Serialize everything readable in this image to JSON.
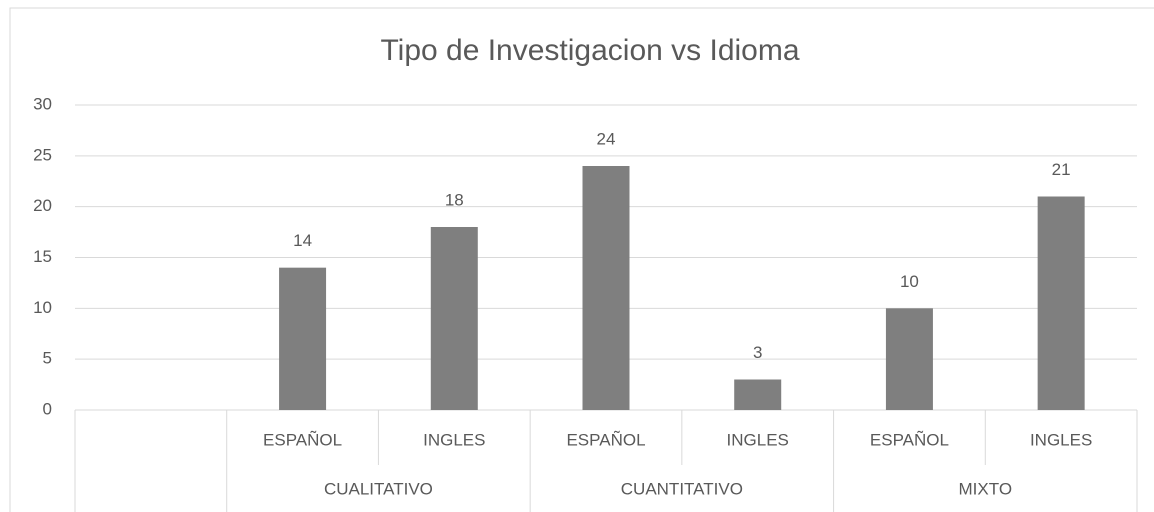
{
  "chart_data": {
    "type": "bar",
    "title": "Tipo de Investigacion vs Idioma",
    "groups": [
      {
        "name": null,
        "categories": [
          null
        ],
        "values": [
          null
        ]
      },
      {
        "name": "CUALITATIVO",
        "categories": [
          "ESPAÑOL",
          "INGLES"
        ],
        "values": [
          14,
          18
        ]
      },
      {
        "name": "CUANTITATIVO",
        "categories": [
          "ESPAÑOL",
          "INGLES"
        ],
        "values": [
          24,
          3
        ]
      },
      {
        "name": "MIXTO",
        "categories": [
          "ESPAÑOL",
          "INGLES"
        ],
        "values": [
          10,
          21
        ]
      }
    ],
    "color": "#7f7f7f",
    "ylim": [
      0,
      30
    ],
    "yticks": [
      0,
      5,
      10,
      15,
      20,
      25,
      30
    ],
    "grid": true
  }
}
